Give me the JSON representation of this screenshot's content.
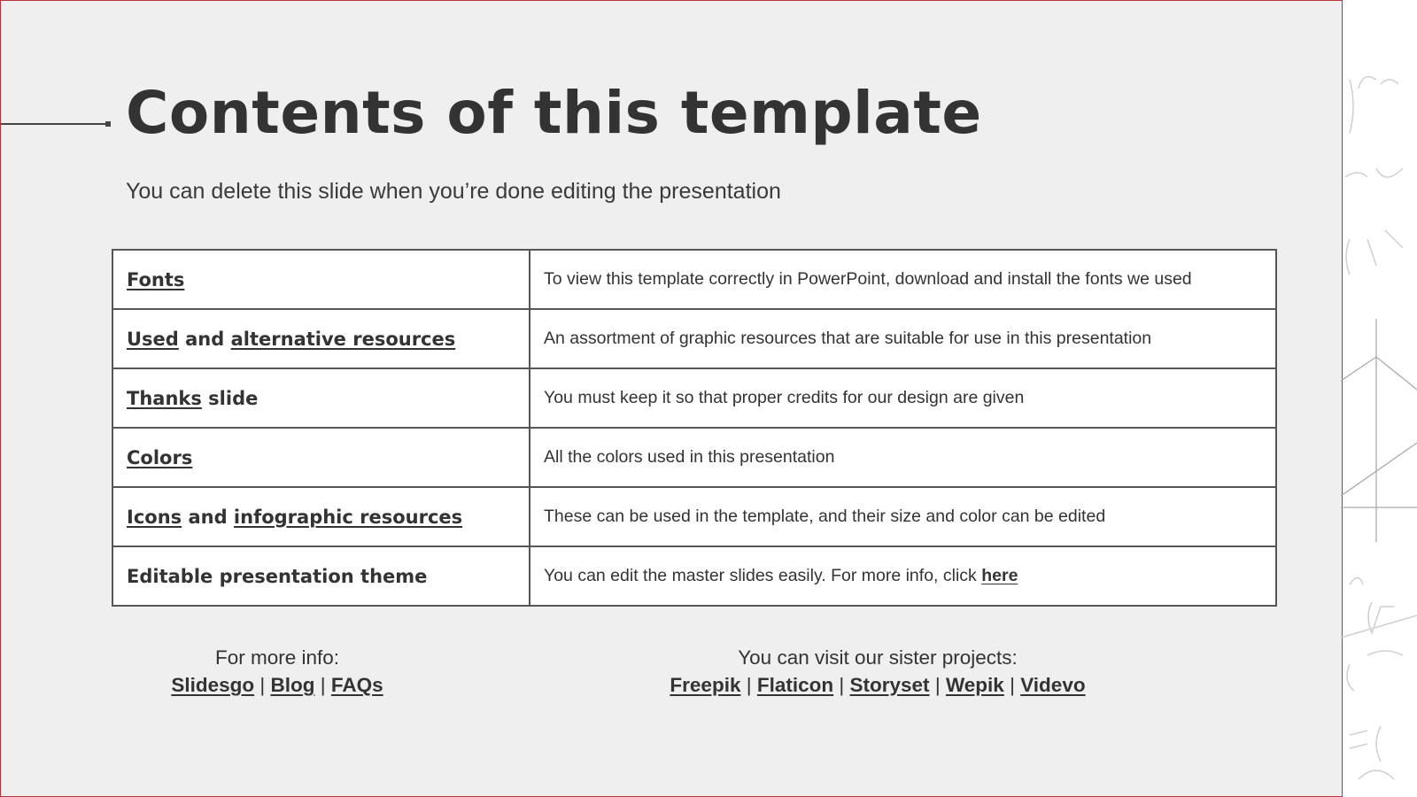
{
  "header": {
    "title": "Contents of this template",
    "subtitle": "You can delete this slide when you’re done editing the presentation"
  },
  "table": {
    "rows": [
      [
        [
          {
            "text": "Fonts",
            "link": true
          }
        ],
        [
          {
            "text": "To view this template correctly in PowerPoint, download and install the fonts we used",
            "link": false
          }
        ]
      ],
      [
        [
          {
            "text": "Used",
            "link": true
          },
          {
            "text": " and ",
            "link": false
          },
          {
            "text": "alternative resources",
            "link": true
          }
        ],
        [
          {
            "text": "An assortment of graphic resources that are suitable for use in this presentation",
            "link": false
          }
        ]
      ],
      [
        [
          {
            "text": "Thanks",
            "link": true
          },
          {
            "text": " slide",
            "link": false
          }
        ],
        [
          {
            "text": "You must keep it so that proper credits for our design are given",
            "link": false
          }
        ]
      ],
      [
        [
          {
            "text": "Colors",
            "link": true
          }
        ],
        [
          {
            "text": "All the colors used in this presentation",
            "link": false
          }
        ]
      ],
      [
        [
          {
            "text": "Icons",
            "link": true
          },
          {
            "text": " and ",
            "link": false
          },
          {
            "text": "infographic resources",
            "link": true
          }
        ],
        [
          {
            "text": "These can be used in the template, and their size and color can be edited",
            "link": false
          }
        ]
      ],
      [
        [
          {
            "text": "Editable presentation theme",
            "link": false
          }
        ],
        [
          {
            "text": "You can edit the master slides easily. For more info, click ",
            "link": false
          },
          {
            "text": "here",
            "link": true
          }
        ]
      ]
    ]
  },
  "footer": {
    "left": {
      "heading": "For more info:",
      "separator": "|",
      "links": [
        "Slidesgo",
        "Blog",
        "FAQs"
      ]
    },
    "right": {
      "heading": "You can visit our sister projects:",
      "separator": "|",
      "links": [
        "Freepik",
        "Flaticon",
        "Storyset",
        "Wepik",
        "Videvo"
      ]
    }
  }
}
